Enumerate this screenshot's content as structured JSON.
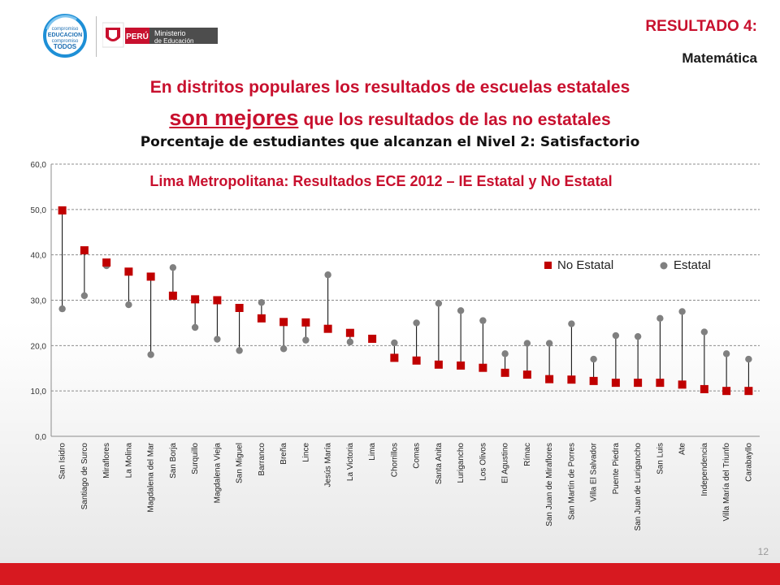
{
  "header": {
    "campaign_logo_text": "compromiso EDUCACION compromiso TODOS",
    "ministry_logo": {
      "country": "PERÚ",
      "ministry": "Ministerio de Educación"
    },
    "result_title": "RESULTADO 4:",
    "result_subject": "Matemática"
  },
  "headline": {
    "line1": "En distritos populares los resultados de escuelas estatales",
    "line2_emphasis": "son mejores",
    "line2_rest": "que los resultados de las no estatales"
  },
  "chart_subtitle": "Porcentaje de estudiantes que alcanzan el Nivel 2: Satisfactorio",
  "page_number": "12",
  "colors": {
    "accent_red": "#c8102e",
    "no_estatal": "#c00000",
    "estatal": "#808080",
    "footer": "#d71920"
  },
  "chart_data": {
    "type": "scatter",
    "title": "Lima Metropolitana: Resultados ECE 2012 – IE Estatal y No Estatal",
    "ylim": [
      0,
      60
    ],
    "yticks": [
      "0,0",
      "10,0",
      "20,0",
      "30,0",
      "40,0",
      "50,0",
      "60,0"
    ],
    "grid": true,
    "legend_position": "right",
    "categories": [
      "San Isidro",
      "Santiago de Surco",
      "Miraflores",
      "La Molina",
      "Magdalena del Mar",
      "San Borja",
      "Surquillo",
      "Magdalena Vieja",
      "San Miguel",
      "Barranco",
      "Breña",
      "Lince",
      "Jesús María",
      "La Victoria",
      "Lima",
      "Chorrillos",
      "Comas",
      "Santa Anita",
      "Lurigancho",
      "Los Olivos",
      "El Agustino",
      "Rímac",
      "San Juan de Miraflores",
      "San Martín de Porres",
      "Villa El Salvador",
      "Puente Piedra",
      "San Juan de Lurigancho",
      "San Luis",
      "Ate",
      "Independencia",
      "Villa María del Triunfo",
      "Carabayllo"
    ],
    "series": [
      {
        "name": "No Estatal",
        "marker": "square",
        "color": "#c00000",
        "values": [
          49.8,
          41.0,
          38.3,
          36.3,
          35.2,
          31.0,
          30.2,
          30.0,
          28.3,
          26.0,
          25.2,
          25.1,
          23.7,
          22.8,
          21.5,
          17.3,
          16.7,
          15.8,
          15.6,
          15.1,
          14.0,
          13.6,
          12.6,
          12.5,
          12.2,
          11.8,
          11.8,
          11.8,
          11.4,
          10.4,
          10.0,
          10.0
        ]
      },
      {
        "name": "Estatal",
        "marker": "circle",
        "color": "#808080",
        "values": [
          28.1,
          31.0,
          37.6,
          29.0,
          18.0,
          37.2,
          24.0,
          21.4,
          18.9,
          29.5,
          19.3,
          21.2,
          35.6,
          20.8,
          21.5,
          20.6,
          25.0,
          29.3,
          27.7,
          25.5,
          18.2,
          20.5,
          20.5,
          24.8,
          17.0,
          22.2,
          22.0,
          26.0,
          27.5,
          23.0,
          18.2,
          17.0
        ]
      }
    ]
  }
}
